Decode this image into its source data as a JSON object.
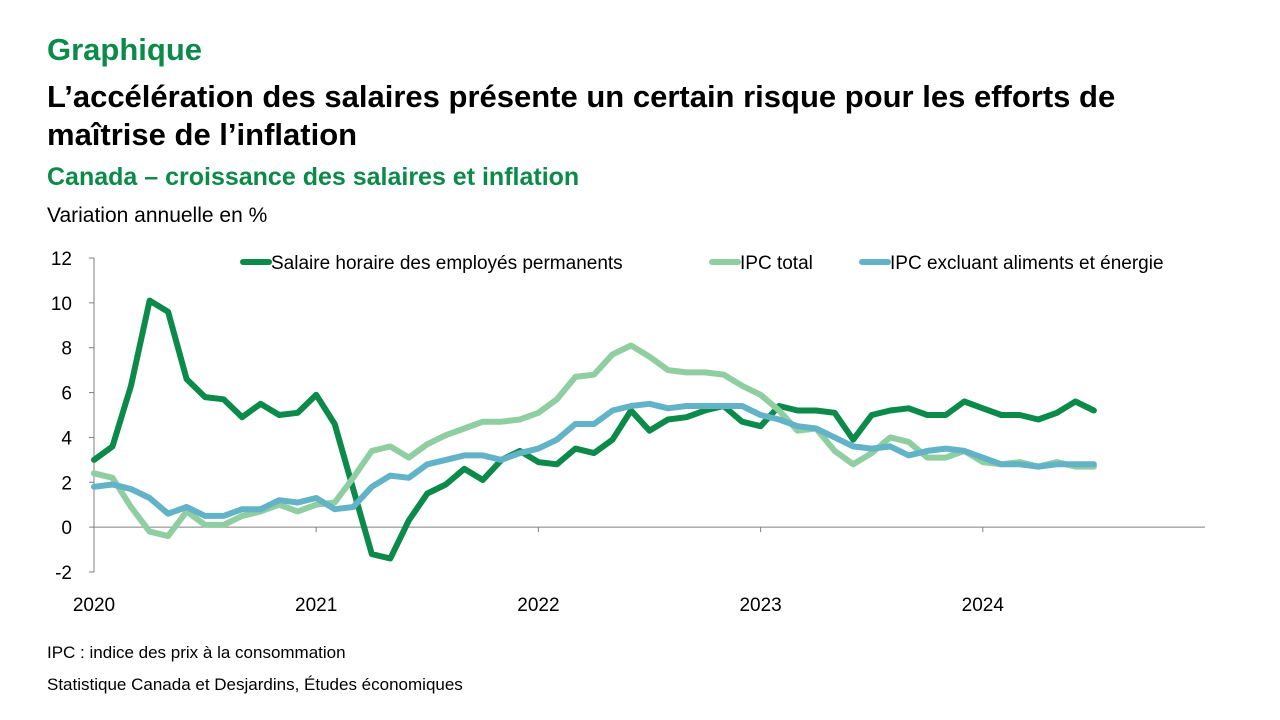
{
  "header": {
    "kicker": "Graphique",
    "title": "L’accélération des salaires présente un certain risque pour les efforts de maîtrise de l’inflation",
    "subtitle": "Canada – croissance des salaires et inflation"
  },
  "footer": {
    "note": "IPC : indice des prix à la consommation",
    "source": "Statistique Canada et Desjardins, Études économiques"
  },
  "chart_data": {
    "type": "line",
    "title": "Canada – croissance des salaires et inflation",
    "ylabel": "Variation annuelle en %",
    "xlabel": "",
    "ylim": [
      -2,
      12
    ],
    "yticks": [
      -2,
      0,
      2,
      4,
      6,
      8,
      10,
      12
    ],
    "x_start": "2020-01",
    "x_tick_labels": [
      "2020",
      "2021",
      "2022",
      "2023",
      "2024"
    ],
    "legend_position": "top",
    "series": [
      {
        "name": "Salaire horaire des employés permanents",
        "color": "#0b8a4a",
        "values": [
          3.0,
          3.6,
          6.3,
          10.1,
          9.6,
          6.6,
          5.8,
          5.7,
          4.9,
          5.5,
          5.0,
          5.1,
          5.9,
          4.6,
          1.7,
          -1.2,
          -1.4,
          0.3,
          1.5,
          1.9,
          2.6,
          2.1,
          3.0,
          3.4,
          2.9,
          2.8,
          3.5,
          3.3,
          3.9,
          5.2,
          4.3,
          4.8,
          4.9,
          5.2,
          5.4,
          4.7,
          4.5,
          5.4,
          5.2,
          5.2,
          5.1,
          3.9,
          5.0,
          5.2,
          5.3,
          5.0,
          5.0,
          5.6,
          5.3,
          5.0,
          5.0,
          4.8,
          5.1,
          5.6,
          5.2
        ]
      },
      {
        "name": "IPC total",
        "color": "#8fcea0",
        "values": [
          2.4,
          2.2,
          0.9,
          -0.2,
          -0.4,
          0.7,
          0.1,
          0.1,
          0.5,
          0.7,
          1.0,
          0.7,
          1.0,
          1.1,
          2.2,
          3.4,
          3.6,
          3.1,
          3.7,
          4.1,
          4.4,
          4.7,
          4.7,
          4.8,
          5.1,
          5.7,
          6.7,
          6.8,
          7.7,
          8.1,
          7.6,
          7.0,
          6.9,
          6.9,
          6.8,
          6.3,
          5.9,
          5.2,
          4.3,
          4.4,
          3.4,
          2.8,
          3.3,
          4.0,
          3.8,
          3.1,
          3.1,
          3.4,
          2.9,
          2.8,
          2.9,
          2.7,
          2.9,
          2.7,
          2.7
        ]
      },
      {
        "name": "IPC excluant aliments et énergie",
        "color": "#62b3c7",
        "values": [
          1.8,
          1.9,
          1.7,
          1.3,
          0.6,
          0.9,
          0.5,
          0.5,
          0.8,
          0.8,
          1.2,
          1.1,
          1.3,
          0.8,
          0.9,
          1.8,
          2.3,
          2.2,
          2.8,
          3.0,
          3.2,
          3.2,
          3.0,
          3.3,
          3.5,
          3.9,
          4.6,
          4.6,
          5.2,
          5.4,
          5.5,
          5.3,
          5.4,
          5.4,
          5.4,
          5.4,
          5.0,
          4.8,
          4.5,
          4.4,
          4.0,
          3.6,
          3.5,
          3.6,
          3.2,
          3.4,
          3.5,
          3.4,
          3.1,
          2.8,
          2.8,
          2.7,
          2.8,
          2.8,
          2.8
        ]
      }
    ]
  }
}
